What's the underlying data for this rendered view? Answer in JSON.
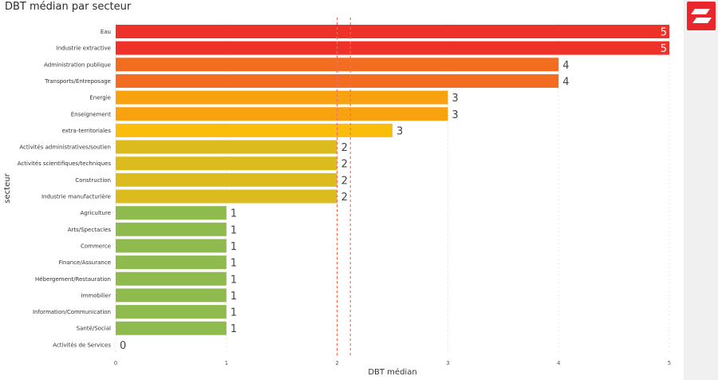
{
  "title": "DBT médian par secteur",
  "logo_icon": "brand-logo-icon",
  "chart_data": {
    "type": "bar",
    "orientation": "horizontal",
    "title": "DBT médian par secteur",
    "xlabel": "DBT médian",
    "ylabel": "secteur",
    "xlim": [
      0,
      5
    ],
    "xticks": [
      0,
      1,
      2,
      3,
      4,
      5
    ],
    "reference_lines": [
      2.0,
      2.12
    ],
    "reference_line_color": "#f07060",
    "grid": "vertical dotted",
    "categories": [
      "Eau",
      "Industrie extractive",
      "Administration publique",
      "Transports/Entreposage",
      "Energie",
      "Enseignement",
      "extra-territoriales",
      "Activités administratives/soutien",
      "Activités scientifiques/techniques",
      "Construction",
      "Industrie manufacturière",
      "Agriculture",
      "Arts/Spectacles",
      "Commerce",
      "Finance/Assurance",
      "Hébergement/Restauration",
      "Immobilier",
      "Information/Communication",
      "Santé/Social",
      "Activités de Services"
    ],
    "values": [
      5,
      5,
      4,
      4,
      3,
      3,
      2.5,
      2,
      2,
      2,
      2,
      1,
      1,
      1,
      1,
      1,
      1,
      1,
      1,
      0
    ],
    "labels": [
      "5",
      "5",
      "4",
      "4",
      "3",
      "3",
      "3",
      "2",
      "2",
      "2",
      "2",
      "1",
      "1",
      "1",
      "1",
      "1",
      "1",
      "1",
      "1",
      "0"
    ],
    "colors": [
      "#ee3129",
      "#ee3129",
      "#f26d1f",
      "#f26d1f",
      "#f9a20f",
      "#f9a20f",
      "#fbbd0b",
      "#dcbb1f",
      "#dcbb1f",
      "#dcbb1f",
      "#dcbb1f",
      "#8fbb4e",
      "#8fbb4e",
      "#8fbb4e",
      "#8fbb4e",
      "#8fbb4e",
      "#8fbb4e",
      "#8fbb4e",
      "#8fbb4e",
      "#8fbb4e"
    ]
  }
}
